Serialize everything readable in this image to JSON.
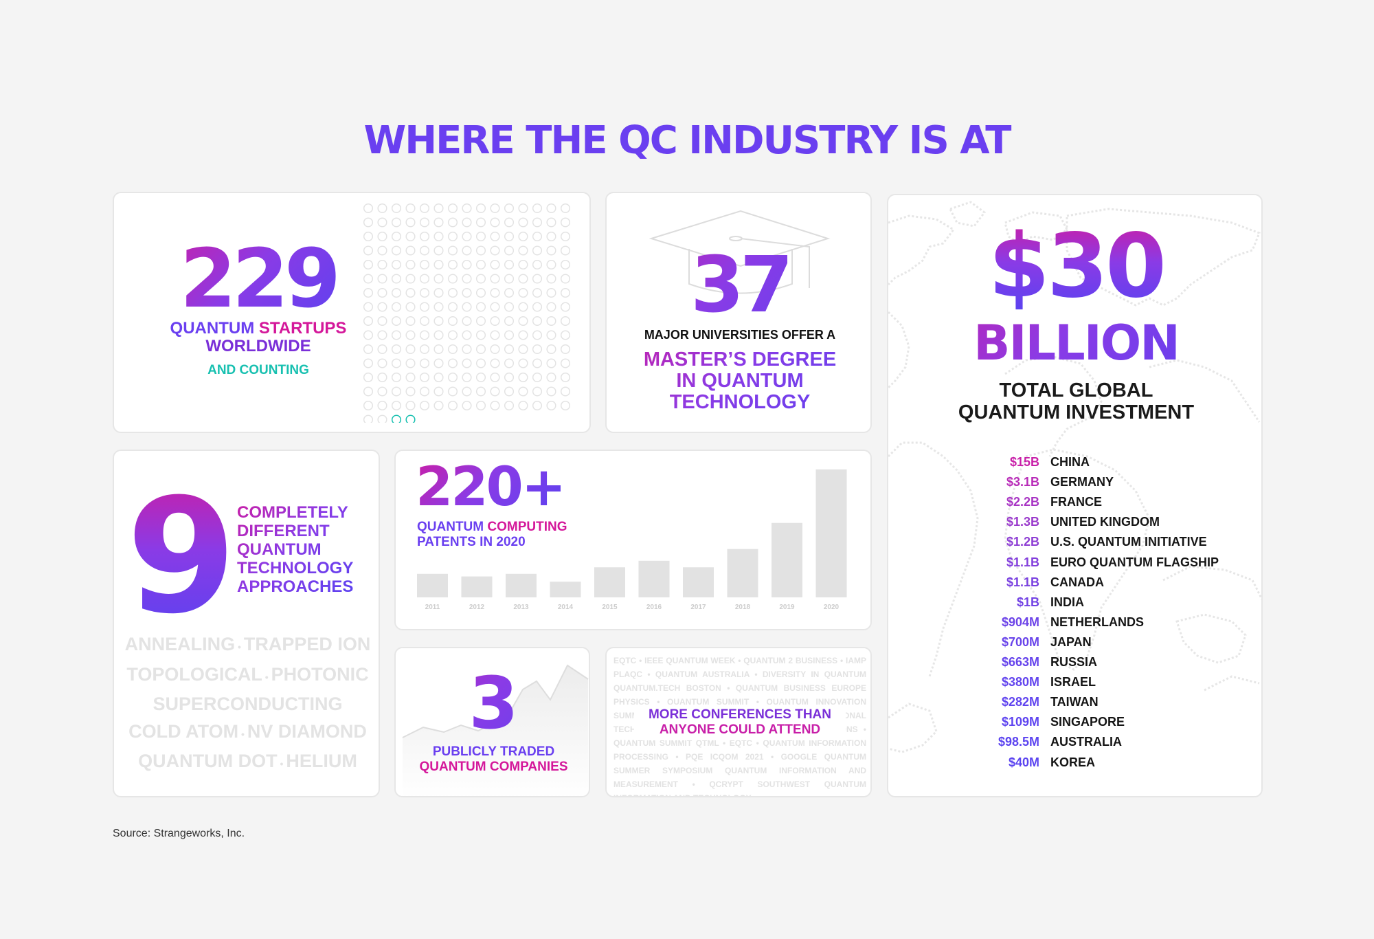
{
  "title": "WHERE THE QC INDUSTRY IS AT",
  "startups": {
    "number": "229",
    "line1_part1": "QUANTUM ",
    "line1_part2": "STARTUPS",
    "line2": "WORLDWIDE",
    "line3": "AND COUNTING",
    "dot_count": 229,
    "highlight_color": "#17c0b0"
  },
  "universities": {
    "number": "37",
    "subtitle": "MAJOR UNIVERSITIES OFFER A",
    "degree_l1": "MASTER’S DEGREE",
    "degree_l2": "IN QUANTUM",
    "degree_l3": "TECHNOLOGY",
    "icon": "graduation-cap-icon"
  },
  "investment": {
    "amount": "$30",
    "unit": "BILLION",
    "subtitle_l1": "TOTAL GLOBAL",
    "subtitle_l2": "QUANTUM INVESTMENT",
    "rows": [
      {
        "amount": "$15B",
        "country": "CHINA"
      },
      {
        "amount": "$3.1B",
        "country": "GERMANY"
      },
      {
        "amount": "$2.2B",
        "country": "FRANCE"
      },
      {
        "amount": "$1.3B",
        "country": "UNITED KINGDOM"
      },
      {
        "amount": "$1.2B",
        "country": "U.S. QUANTUM INITIATIVE"
      },
      {
        "amount": "$1.1B",
        "country": "EURO QUANTUM FLAGSHIP"
      },
      {
        "amount": "$1.1B",
        "country": "CANADA"
      },
      {
        "amount": "$1B",
        "country": "INDIA"
      },
      {
        "amount": "$904M",
        "country": "NETHERLANDS"
      },
      {
        "amount": "$700M",
        "country": "JAPAN"
      },
      {
        "amount": "$663M",
        "country": "RUSSIA"
      },
      {
        "amount": "$380M",
        "country": "ISRAEL"
      },
      {
        "amount": "$282M",
        "country": "TAIWAN"
      },
      {
        "amount": "$109M",
        "country": "SINGAPORE"
      },
      {
        "amount": "$98.5M",
        "country": "AUSTRALIA"
      },
      {
        "amount": "$40M",
        "country": "KOREA"
      }
    ]
  },
  "technology": {
    "number": "9",
    "text_l1": "COMPLETELY",
    "text_l2": "DIFFERENT",
    "text_l3": "QUANTUM",
    "text_l4": "TECHNOLOGY",
    "text_l5": "APPROACHES",
    "approaches": [
      [
        "ANNEALING",
        "TRAPPED ION"
      ],
      [
        "TOPOLOGICAL",
        "PHOTONIC"
      ],
      [
        "SUPERCONDUCTING"
      ],
      [
        "COLD ATOM",
        "NV DIAMOND"
      ],
      [
        "QUANTUM DOT",
        "HELIUM"
      ]
    ]
  },
  "patents": {
    "number": "220+",
    "sub_l1_part1": "QUANTUM ",
    "sub_l1_part2": "COMPUTING",
    "sub_l2": "PATENTS IN 2020"
  },
  "chart_data": {
    "type": "bar",
    "categories": [
      "2011",
      "2012",
      "2013",
      "2014",
      "2015",
      "2016",
      "2017",
      "2018",
      "2019",
      "2020"
    ],
    "values": [
      18,
      16,
      18,
      12,
      23,
      28,
      23,
      37,
      57,
      98
    ],
    "title": "",
    "xlabel": "",
    "ylabel": "",
    "ylim": [
      0,
      100
    ],
    "grid": false,
    "bar_color": "#e2e2e2"
  },
  "public": {
    "number": "3",
    "sub_l1": "PUBLICLY TRADED",
    "sub_l2": "QUANTUM COMPANIES"
  },
  "conferences": {
    "main_l1": "MORE CONFERENCES THAN",
    "main_l2": "ANYONE COULD ATTEND",
    "background_text": "EQTC • IEEE QUANTUM WEEK • QUANTUM 2 BUSINESS • IAMP PLAQC • QUANTUM AUSTRALIA • DIVERSITY IN QUANTUM QUANTUM.TECH BOSTON • QUANTUM BUSINESS EUROPE PHYSICS • QUANTUM SUMMIT • QUANTUM INNOVATION SUMMIT QIP • QUANTUM TECHNOLOGY • INTERNATIONAL TECHNOLOGY SQUINT • IQT • QUANTUM FOUNDATIONS • QUANTUM SUMMIT QTML • EQTC • QUANTUM INFORMATION PROCESSING • PQE ICQOM 2021 • GOOGLE QUANTUM SUMMER SYMPOSIUM QUANTUM INFORMATION AND MEASUREMENT • QCRYPT SOUTHWEST QUANTUM INFORMATION AND TECHNOLOGY"
  },
  "source": "Source: Strangeworks, Inc."
}
